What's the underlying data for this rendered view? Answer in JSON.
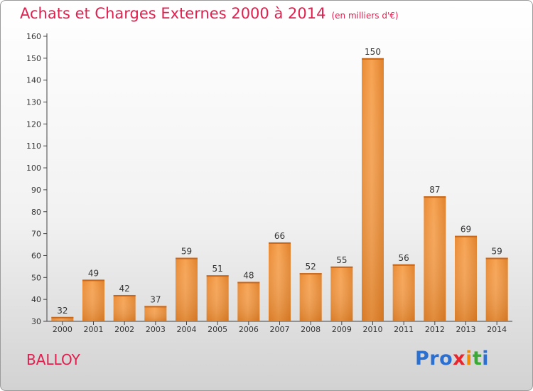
{
  "title": "Achats et Charges Externes 2000 à 2014",
  "unit": "(en milliers d'€)",
  "commune": "BALLOY",
  "logo": {
    "text": "Proxiti",
    "parts": [
      "Pro",
      "x",
      "i",
      "t",
      "i"
    ]
  },
  "colors": {
    "title": "#e0204f",
    "bar_light": "#f7a352",
    "bar_dark": "#d9751f",
    "axis": "#444444"
  },
  "chart_data": {
    "type": "bar",
    "title": "Achats et Charges Externes 2000 à 2014",
    "subtitle": "(en milliers d'€)",
    "categories": [
      "2000",
      "2001",
      "2002",
      "2003",
      "2004",
      "2005",
      "2006",
      "2007",
      "2008",
      "2009",
      "2010",
      "2011",
      "2012",
      "2013",
      "2014"
    ],
    "values": [
      32,
      49,
      42,
      37,
      59,
      51,
      48,
      66,
      52,
      55,
      150,
      56,
      87,
      69,
      59
    ],
    "ylim": [
      30,
      160
    ],
    "yticks": [
      30,
      40,
      50,
      60,
      70,
      80,
      90,
      100,
      110,
      120,
      130,
      140,
      150,
      160
    ],
    "grid": false,
    "legend": "none"
  }
}
